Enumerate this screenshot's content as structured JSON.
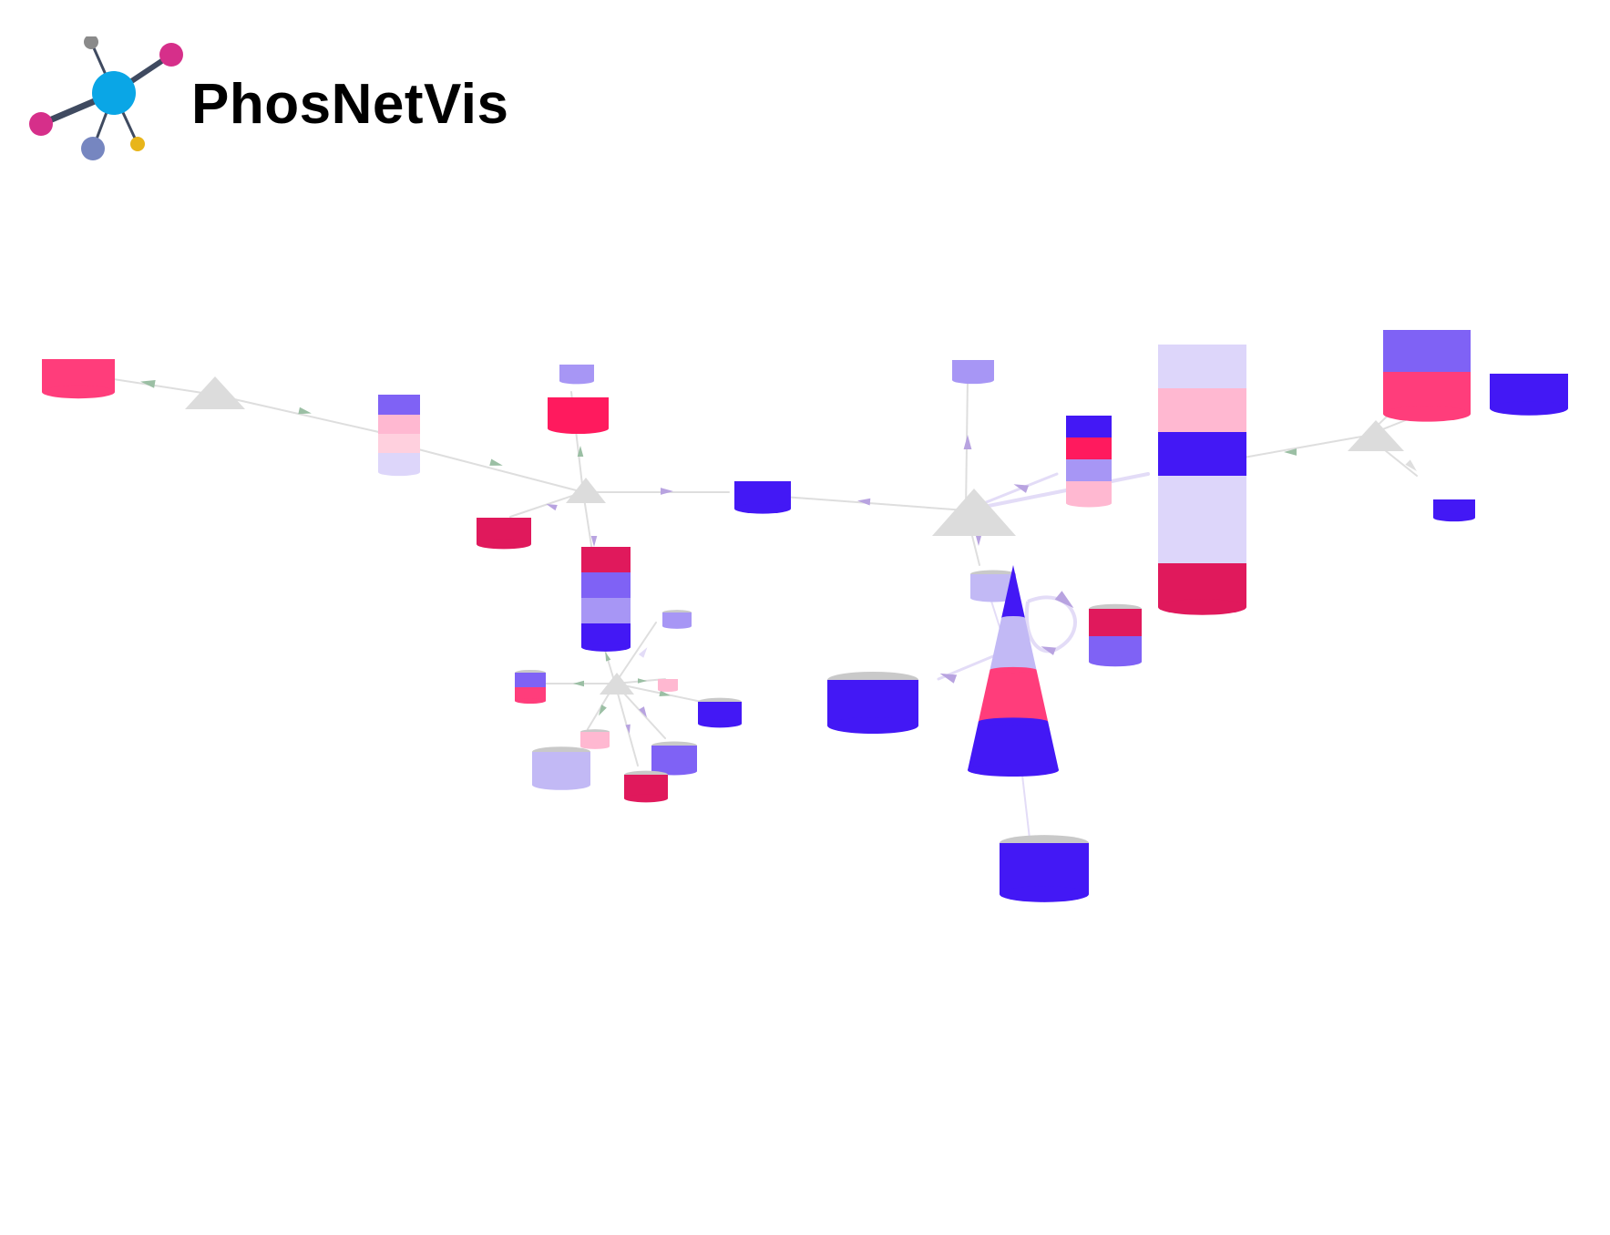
{
  "app": {
    "title": "PhosNetVis"
  },
  "colors": {
    "logo_hub": "#0aa6e6",
    "logo_edge": "#3f4a60",
    "logo_magenta": "#d62f8a",
    "logo_gray": "#8a8a8a",
    "logo_slate": "#7686c0",
    "logo_yellow": "#e8b51a",
    "hub_node": "#dcdcdc",
    "cylinder_top": "#c9c9c9",
    "edge_default": "#dedede",
    "arrow_green": "#9bbfa4",
    "arrow_purple": "#b8a3e0",
    "edge_lavender": "#e3dcf7",
    "blue": "#4318f5",
    "violet": "#7f62f5",
    "periwinkle": "#a796f5",
    "lavender": "#c2b9f5",
    "pale_lavender": "#ddd6fa",
    "pink": "#ff3d7b",
    "hot_pink": "#ff1a5e",
    "crimson": "#e0195c",
    "light_pink": "#ffb8d1",
    "blush": "#ffd0de"
  },
  "network": {
    "node_kinds": [
      "hub-triangle",
      "kinase-cylinder",
      "kinase-cone"
    ],
    "edge_kinds": [
      "phosphorylation-arrow"
    ]
  }
}
